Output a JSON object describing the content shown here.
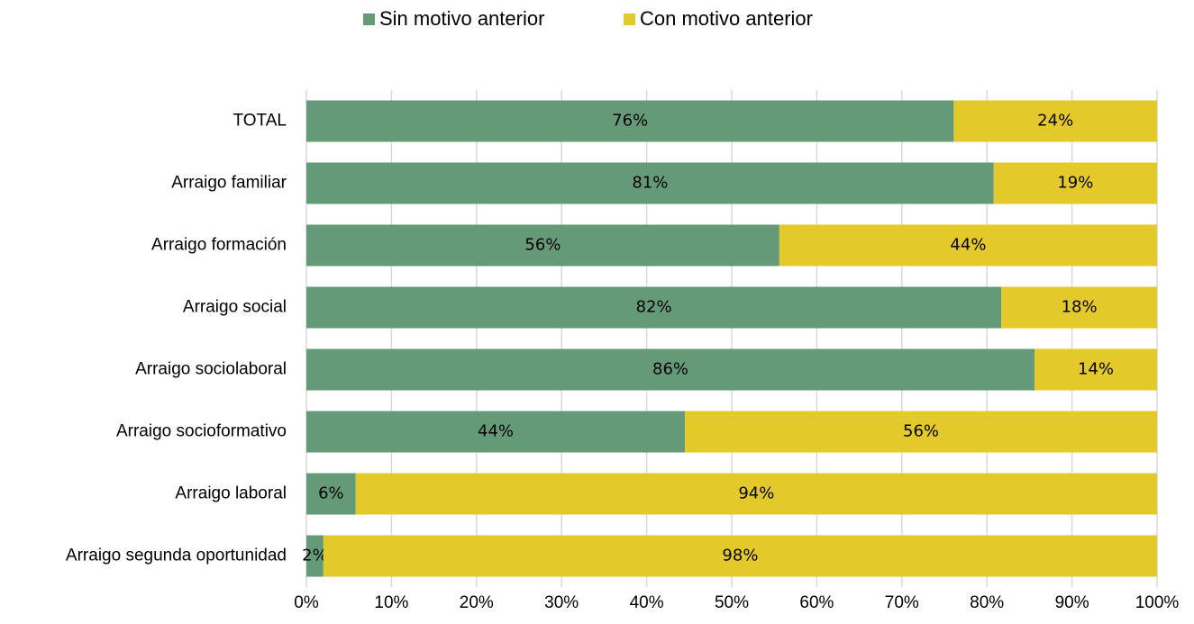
{
  "chart_data": {
    "type": "bar",
    "orientation": "horizontal",
    "stacked": true,
    "categories": [
      "TOTAL",
      "Arraigo familiar",
      "Arraigo formación",
      "Arraigo social",
      "Arraigo sociolaboral",
      "Arraigo socioformativo",
      "Arraigo laboral",
      "Arraigo segunda oportunidad"
    ],
    "series": [
      {
        "name": "Sin motivo anterior",
        "color": "#659a78",
        "values": [
          76.1,
          80.8,
          55.6,
          81.7,
          85.6,
          44.5,
          5.8,
          2.0
        ],
        "value_labels": [
          "76%",
          "81%",
          "56%",
          "82%",
          "86%",
          "44%",
          "6%",
          "2%"
        ]
      },
      {
        "name": "Con motivo anterior",
        "color": "#e4c92a",
        "values": [
          23.9,
          19.2,
          44.4,
          18.3,
          14.4,
          55.5,
          94.2,
          98.0
        ],
        "value_labels": [
          "24%",
          "19%",
          "44%",
          "18%",
          "14%",
          "56%",
          "94%",
          "98%"
        ]
      }
    ],
    "xlim": [
      0,
      100
    ],
    "xticks": [
      {
        "value": 0,
        "label": "0%"
      },
      {
        "value": 10,
        "label": "10%"
      },
      {
        "value": 20,
        "label": "20%"
      },
      {
        "value": 30,
        "label": "30%"
      },
      {
        "value": 40,
        "label": "40%"
      },
      {
        "value": 50,
        "label": "50%"
      },
      {
        "value": 60,
        "label": "60%"
      },
      {
        "value": 70,
        "label": "70%"
      },
      {
        "value": 80,
        "label": "80%"
      },
      {
        "value": 90,
        "label": "90%"
      },
      {
        "value": 100,
        "label": "100%"
      }
    ],
    "grid": true,
    "legend": "top"
  }
}
